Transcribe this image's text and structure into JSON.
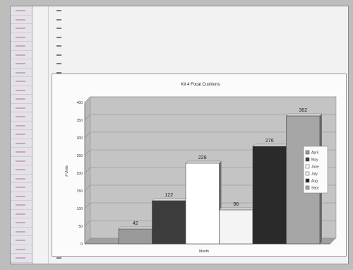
{
  "chart_data": {
    "type": "bar",
    "title": "Kit 4 Focal Cushions",
    "xlabel": "Month",
    "ylabel": "# Units",
    "categories": [
      "April",
      "May",
      "June",
      "July",
      "Aug",
      "Sept"
    ],
    "values": [
      42,
      122,
      228,
      96,
      276,
      362
    ],
    "ylim": [
      0,
      400
    ],
    "yticks": [
      0,
      50,
      100,
      150,
      200,
      250,
      300,
      350,
      400
    ],
    "grid": true,
    "legend": "right",
    "colors": [
      "#9a9a9a",
      "#3c3c3c",
      "#ffffff",
      "#f4f4f4",
      "#2a2a2a",
      "#a6a6a6"
    ]
  }
}
